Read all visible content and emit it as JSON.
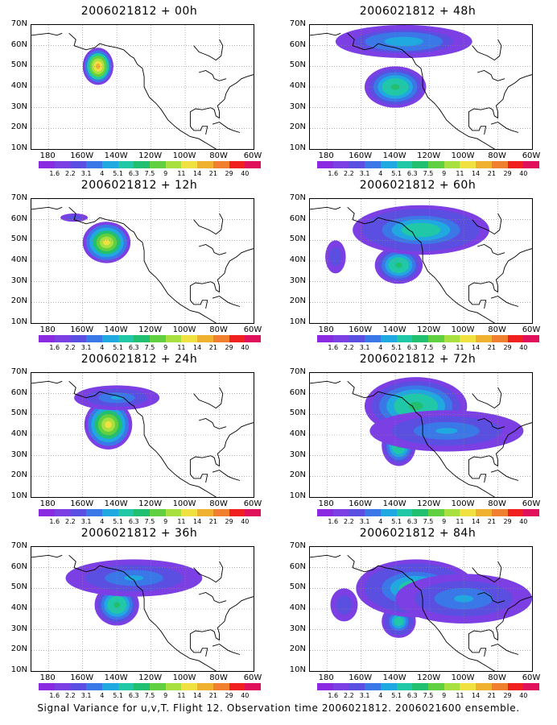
{
  "figure": {
    "caption": "Signal Variance for u,v,T. Flight 12. Observation time 2006021812. 2006021600 ensemble."
  },
  "axes": {
    "y_labels": [
      "70N",
      "60N",
      "50N",
      "40N",
      "30N",
      "20N",
      "10N"
    ],
    "x_labels": [
      "180",
      "160W",
      "140W",
      "120W",
      "100W",
      "80W",
      "60W"
    ]
  },
  "colorbar": {
    "labels": [
      "1.6",
      "2.2",
      "3.1",
      "4",
      "5.1",
      "6.3",
      "7.5",
      "9",
      "11",
      "14",
      "21",
      "29",
      "40"
    ],
    "colors": [
      "#8a2be2",
      "#7b3fe4",
      "#5a4fe0",
      "#3a78e8",
      "#20a8e0",
      "#20c8a8",
      "#20c070",
      "#60d040",
      "#a8e040",
      "#f0e040",
      "#f0b030",
      "#f08030",
      "#f02020",
      "#e0105a"
    ]
  },
  "panels": [
    {
      "title": "2006021812 + 00h",
      "blobs": [
        {
          "lon": -151,
          "lat": 50,
          "rx": 9,
          "ry": 9,
          "max": 14
        }
      ]
    },
    {
      "title": "2006021812 + 48h",
      "blobs": [
        {
          "lon": -140,
          "lat": 40,
          "rx": 18,
          "ry": 10,
          "max": 7
        },
        {
          "lon": -135,
          "lat": 62,
          "rx": 40,
          "ry": 8,
          "max": 5
        }
      ]
    },
    {
      "title": "2006021812 + 12h",
      "blobs": [
        {
          "lon": -146,
          "lat": 49,
          "rx": 14,
          "ry": 10,
          "max": 11
        },
        {
          "lon": -165,
          "lat": 61,
          "rx": 8,
          "ry": 2,
          "max": 3
        }
      ]
    },
    {
      "title": "2006021812 + 60h",
      "blobs": [
        {
          "lon": -138,
          "lat": 38,
          "rx": 14,
          "ry": 9,
          "max": 7
        },
        {
          "lon": -125,
          "lat": 55,
          "rx": 40,
          "ry": 12,
          "max": 6
        },
        {
          "lon": -175,
          "lat": 42,
          "rx": 6,
          "ry": 8,
          "max": 3
        }
      ]
    },
    {
      "title": "2006021812 + 24h",
      "blobs": [
        {
          "lon": -145,
          "lat": 45,
          "rx": 14,
          "ry": 12,
          "max": 11
        },
        {
          "lon": -140,
          "lat": 58,
          "rx": 25,
          "ry": 6,
          "max": 4
        }
      ]
    },
    {
      "title": "2006021812 + 72h",
      "blobs": [
        {
          "lon": -138,
          "lat": 35,
          "rx": 10,
          "ry": 10,
          "max": 7
        },
        {
          "lon": -128,
          "lat": 54,
          "rx": 30,
          "ry": 14,
          "max": 7
        },
        {
          "lon": -110,
          "lat": 42,
          "rx": 45,
          "ry": 10,
          "max": 4
        }
      ]
    },
    {
      "title": "2006021812 + 36h",
      "blobs": [
        {
          "lon": -140,
          "lat": 42,
          "rx": 13,
          "ry": 10,
          "max": 7
        },
        {
          "lon": -130,
          "lat": 55,
          "rx": 40,
          "ry": 9,
          "max": 4
        }
      ]
    },
    {
      "title": "2006021812 + 84h",
      "blobs": [
        {
          "lon": -138,
          "lat": 34,
          "rx": 10,
          "ry": 8,
          "max": 6
        },
        {
          "lon": -128,
          "lat": 50,
          "rx": 35,
          "ry": 14,
          "max": 6
        },
        {
          "lon": -100,
          "lat": 45,
          "rx": 40,
          "ry": 12,
          "max": 4
        },
        {
          "lon": -170,
          "lat": 42,
          "rx": 8,
          "ry": 8,
          "max": 3
        }
      ]
    }
  ]
}
